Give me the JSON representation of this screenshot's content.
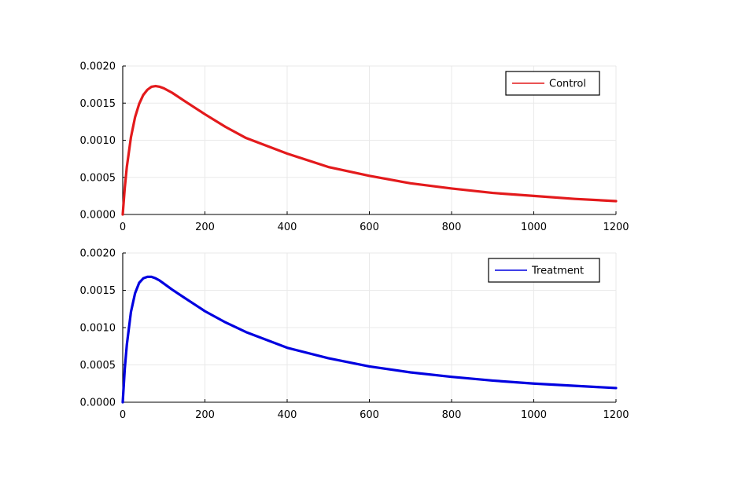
{
  "chart_data": [
    {
      "type": "line",
      "xlim": [
        0,
        1200
      ],
      "ylim": [
        0,
        0.002
      ],
      "x_ticks": [
        "0",
        "200",
        "400",
        "600",
        "800",
        "1000",
        "1200"
      ],
      "y_ticks": [
        "0.0000",
        "0.0005",
        "0.0010",
        "0.0015",
        "0.0020"
      ],
      "grid": true,
      "legend_position": "top-right",
      "series": [
        {
          "name": "Control",
          "color": "#e31a1c",
          "x": [
            0,
            5,
            10,
            20,
            30,
            40,
            50,
            60,
            70,
            80,
            90,
            100,
            120,
            150,
            200,
            250,
            300,
            400,
            500,
            600,
            700,
            800,
            900,
            1000,
            1100,
            1200
          ],
          "y": [
            0,
            0.00036,
            0.00064,
            0.00104,
            0.00131,
            0.00149,
            0.00161,
            0.00168,
            0.00172,
            0.00173,
            0.00172,
            0.0017,
            0.00164,
            0.00153,
            0.00135,
            0.00118,
            0.00103,
            0.00082,
            0.00064,
            0.00052,
            0.00042,
            0.00035,
            0.00029,
            0.00025,
            0.00021,
            0.00018
          ]
        }
      ]
    },
    {
      "type": "line",
      "xlim": [
        0,
        1200
      ],
      "ylim": [
        0,
        0.002
      ],
      "x_ticks": [
        "0",
        "200",
        "400",
        "600",
        "800",
        "1000",
        "1200"
      ],
      "y_ticks": [
        "0.0000",
        "0.0005",
        "0.0010",
        "0.0015",
        "0.0020"
      ],
      "grid": true,
      "legend_position": "top-right",
      "series": [
        {
          "name": "Treatment",
          "color": "#0000e0",
          "x": [
            0,
            5,
            10,
            20,
            30,
            40,
            50,
            60,
            70,
            80,
            90,
            100,
            120,
            150,
            200,
            250,
            300,
            400,
            500,
            600,
            700,
            800,
            900,
            1000,
            1100,
            1200
          ],
          "y": [
            0,
            0.00045,
            0.00077,
            0.00121,
            0.00146,
            0.0016,
            0.00166,
            0.00168,
            0.00168,
            0.00166,
            0.00163,
            0.00159,
            0.00151,
            0.0014,
            0.00122,
            0.00107,
            0.00094,
            0.00073,
            0.00059,
            0.00048,
            0.0004,
            0.00034,
            0.00029,
            0.00025,
            0.00022,
            0.00019
          ]
        }
      ]
    }
  ]
}
